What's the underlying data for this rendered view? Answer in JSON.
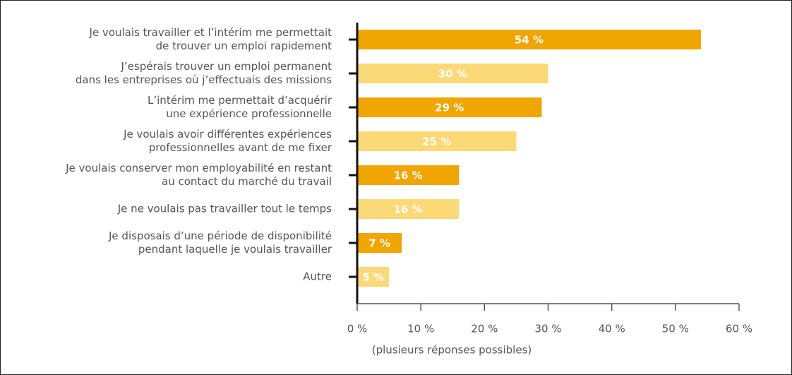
{
  "chart_data": {
    "type": "barh",
    "categories": [
      [
        "Je voulais travailler et l’intérim me permettait",
        "de trouver un emploi rapidement"
      ],
      [
        "J’espérais trouver un emploi permanent",
        "dans les entreprises où j’effectuais des missions"
      ],
      [
        "L’intérim me permettait d’acquérir",
        "une expérience professionnelle"
      ],
      [
        "Je voulais avoir différentes expériences",
        "professionnelles avant de me fixer"
      ],
      [
        "Je voulais conserver mon employabilité en restant",
        "au contact du marché du travail"
      ],
      [
        "Je ne voulais pas travailler tout le temps"
      ],
      [
        "Je disposais d’une période de disponibilité",
        "pendant laquelle je voulais travailler"
      ],
      [
        "Autre"
      ]
    ],
    "values": [
      54,
      30,
      29,
      25,
      16,
      16,
      7,
      5
    ],
    "value_labels": [
      "54 %",
      "30 %",
      "29 %",
      "25 %",
      "16 %",
      "16 %",
      "7 %",
      "5 %"
    ],
    "colors": [
      "#f0a500",
      "#fcd977",
      "#f0a500",
      "#fcd977",
      "#f0a500",
      "#fcd977",
      "#f0a500",
      "#fcd977"
    ],
    "xlim": [
      0,
      60
    ],
    "xticks": [
      {
        "value": 0,
        "label": "0 %"
      },
      {
        "value": 10,
        "label": "10 %"
      },
      {
        "value": 20,
        "label": "20 %"
      },
      {
        "value": 30,
        "label": "30 %"
      },
      {
        "value": 40,
        "label": "40 %"
      },
      {
        "value": 50,
        "label": "50 %"
      },
      {
        "value": 60,
        "label": "60 %"
      }
    ],
    "xlabel": "(plusieurs réponses possibles)"
  }
}
